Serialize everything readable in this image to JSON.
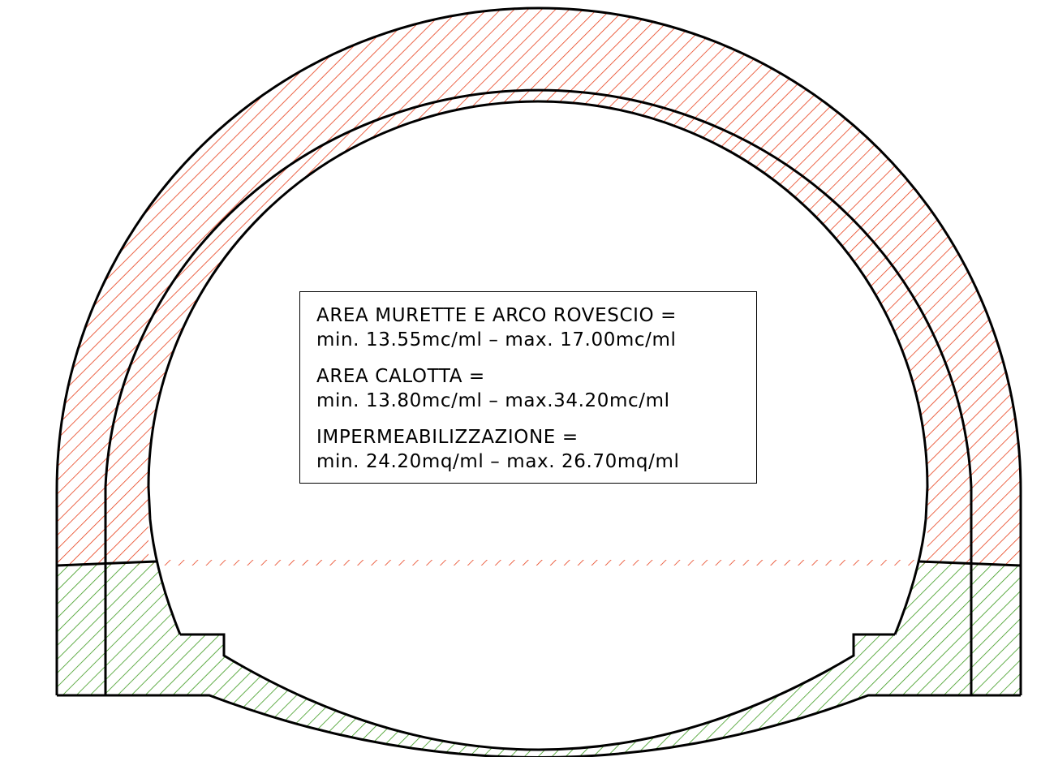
{
  "legend": {
    "murette": {
      "title": "AREA MURETTE E ARCO ROVESCIO =",
      "value": "min. 13.55mc/ml – max. 17.00mc/ml"
    },
    "calotta": {
      "title": "AREA CALOTTA =",
      "value": "min. 13.80mc/ml – max.34.20mc/ml"
    },
    "impermeabilizzazione": {
      "title": "IMPERMEABILIZZAZIONE =",
      "value": "min. 24.20mq/ml – max. 26.70mq/ml"
    }
  },
  "colors": {
    "calotta_hatch": "#e8401c",
    "murette_hatch": "#3c9a1e",
    "outline": "#000000",
    "background": "#ffffff"
  }
}
